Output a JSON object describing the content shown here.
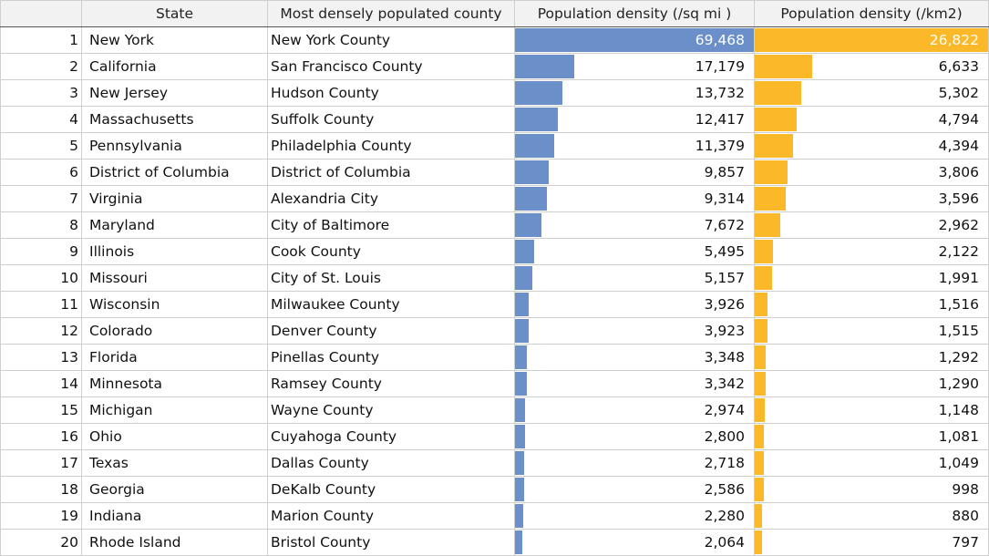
{
  "chart_data": {
    "type": "table",
    "columns": [
      "",
      "State",
      "Most densely populated county",
      "Population density (/sq mi )",
      "Population density (/km2)"
    ],
    "colors": {
      "sq_mi_bar": "#6a8fc9",
      "km2_bar": "#fbb829"
    },
    "rows": [
      {
        "rank": "1",
        "state": "New York",
        "county": "New York County",
        "sq_mi": 69468,
        "sq_mi_text": "69,468",
        "km2": 26822,
        "km2_text": "26,822"
      },
      {
        "rank": "2",
        "state": "California",
        "county": "San Francisco County",
        "sq_mi": 17179,
        "sq_mi_text": "17,179",
        "km2": 6633,
        "km2_text": "6,633"
      },
      {
        "rank": "3",
        "state": "New Jersey",
        "county": "Hudson County",
        "sq_mi": 13732,
        "sq_mi_text": "13,732",
        "km2": 5302,
        "km2_text": "5,302"
      },
      {
        "rank": "4",
        "state": "Massachusetts",
        "county": "Suffolk County",
        "sq_mi": 12417,
        "sq_mi_text": "12,417",
        "km2": 4794,
        "km2_text": "4,794"
      },
      {
        "rank": "5",
        "state": "Pennsylvania",
        "county": "Philadelphia County",
        "sq_mi": 11379,
        "sq_mi_text": "11,379",
        "km2": 4394,
        "km2_text": "4,394"
      },
      {
        "rank": "6",
        "state": "District of Columbia",
        "county": "District of Columbia",
        "sq_mi": 9857,
        "sq_mi_text": "9,857",
        "km2": 3806,
        "km2_text": "3,806"
      },
      {
        "rank": "7",
        "state": "Virginia",
        "county": "Alexandria City",
        "sq_mi": 9314,
        "sq_mi_text": "9,314",
        "km2": 3596,
        "km2_text": "3,596"
      },
      {
        "rank": "8",
        "state": "Maryland",
        "county": "City of Baltimore",
        "sq_mi": 7672,
        "sq_mi_text": "7,672",
        "km2": 2962,
        "km2_text": "2,962"
      },
      {
        "rank": "9",
        "state": "Illinois",
        "county": "Cook County",
        "sq_mi": 5495,
        "sq_mi_text": "5,495",
        "km2": 2122,
        "km2_text": "2,122"
      },
      {
        "rank": "10",
        "state": "Missouri",
        "county": "City of St. Louis",
        "sq_mi": 5157,
        "sq_mi_text": "5,157",
        "km2": 1991,
        "km2_text": "1,991"
      },
      {
        "rank": "11",
        "state": "Wisconsin",
        "county": "Milwaukee County",
        "sq_mi": 3926,
        "sq_mi_text": "3,926",
        "km2": 1516,
        "km2_text": "1,516"
      },
      {
        "rank": "12",
        "state": "Colorado",
        "county": "Denver County",
        "sq_mi": 3923,
        "sq_mi_text": "3,923",
        "km2": 1515,
        "km2_text": "1,515"
      },
      {
        "rank": "13",
        "state": "Florida",
        "county": "Pinellas County",
        "sq_mi": 3348,
        "sq_mi_text": "3,348",
        "km2": 1292,
        "km2_text": "1,292"
      },
      {
        "rank": "14",
        "state": "Minnesota",
        "county": "Ramsey County",
        "sq_mi": 3342,
        "sq_mi_text": "3,342",
        "km2": 1290,
        "km2_text": "1,290"
      },
      {
        "rank": "15",
        "state": "Michigan",
        "county": "Wayne County",
        "sq_mi": 2974,
        "sq_mi_text": "2,974",
        "km2": 1148,
        "km2_text": "1,148"
      },
      {
        "rank": "16",
        "state": "Ohio",
        "county": "Cuyahoga County",
        "sq_mi": 2800,
        "sq_mi_text": "2,800",
        "km2": 1081,
        "km2_text": "1,081"
      },
      {
        "rank": "17",
        "state": "Texas",
        "county": "Dallas County",
        "sq_mi": 2718,
        "sq_mi_text": "2,718",
        "km2": 1049,
        "km2_text": "1,049"
      },
      {
        "rank": "18",
        "state": "Georgia",
        "county": "DeKalb County",
        "sq_mi": 2586,
        "sq_mi_text": "2,586",
        "km2": 998,
        "km2_text": "998"
      },
      {
        "rank": "19",
        "state": "Indiana",
        "county": "Marion County",
        "sq_mi": 2280,
        "sq_mi_text": "2,280",
        "km2": 880,
        "km2_text": "880"
      },
      {
        "rank": "20",
        "state": "Rhode Island",
        "county": "Bristol County",
        "sq_mi": 2064,
        "sq_mi_text": "2,064",
        "km2": 797,
        "km2_text": "797"
      }
    ]
  }
}
